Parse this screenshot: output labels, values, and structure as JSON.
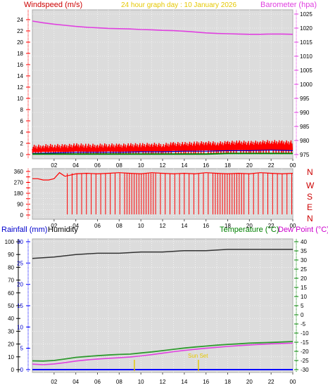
{
  "header": {
    "windspeed_label": "Windspeed (m/s)",
    "title": "24 hour graph day : 10 January 2026",
    "barometer_label": "Barometer (hpa)"
  },
  "compass": {
    "labels": [
      "N",
      "W",
      "S",
      "E",
      "N"
    ]
  },
  "bottom_header": {
    "rainfall_label": "Rainfall (mm)",
    "humidity_label": "Humidity",
    "temperature_label": "Temperature (°C)",
    "dewpoint_label": "Dew Point (°C)"
  },
  "annotations": {
    "sun": "Sun Set"
  },
  "colors": {
    "wind": "#ff0000",
    "gust": "#ff0000",
    "avg_wind": "#0000cc",
    "green_wind": "#008000",
    "barometer": "#e040e0",
    "direction": "#ff0000",
    "rainfall": "#0000ff",
    "humidity": "#333333",
    "temperature": "#2f9a2f",
    "dewpoint": "#e040e0",
    "title": "#e6c800",
    "panel_bg": "#dcdcdc"
  },
  "chart_data": [
    {
      "type": "line",
      "name": "wind_barometer",
      "x_ticks": [
        "02",
        "04",
        "06",
        "08",
        "10",
        "12",
        "14",
        "16",
        "18",
        "20",
        "22",
        "00"
      ],
      "ylim_left": [
        0,
        25
      ],
      "y_ticks_left": [
        0,
        2,
        4,
        6,
        8,
        10,
        12,
        14,
        16,
        18,
        20,
        22,
        24
      ],
      "ylim_right": [
        975,
        1025
      ],
      "y_ticks_right": [
        975,
        980,
        985,
        990,
        995,
        1000,
        1005,
        1010,
        1015,
        1020,
        1025
      ],
      "barometer": {
        "x": [
          0,
          1,
          2,
          3,
          4,
          5,
          6,
          7,
          8,
          9,
          10,
          11,
          12,
          13,
          14,
          15,
          16,
          17,
          18,
          19,
          20,
          21,
          22,
          23,
          24
        ],
        "values": [
          1022.5,
          1021.9,
          1021.4,
          1021.0,
          1020.6,
          1020.3,
          1020.1,
          1019.9,
          1019.8,
          1019.7,
          1019.5,
          1019.4,
          1019.2,
          1019.1,
          1018.9,
          1018.6,
          1018.3,
          1018.1,
          1018.0,
          1017.9,
          1017.8,
          1017.8,
          1017.9,
          1017.9,
          1017.8
        ]
      },
      "wind_max": {
        "x": [
          0,
          1,
          2,
          3,
          4,
          5,
          6,
          7,
          8,
          9,
          10,
          11,
          12,
          13,
          14,
          15,
          16,
          17,
          18,
          19,
          20,
          21,
          22,
          23,
          24
        ],
        "values": [
          1.0,
          1.1,
          1.2,
          1.1,
          1.3,
          1.2,
          1.2,
          1.3,
          1.2,
          1.3,
          1.3,
          1.4,
          1.3,
          1.5,
          1.5,
          1.6,
          1.7,
          1.6,
          1.7,
          1.8,
          1.7,
          1.8,
          1.9,
          1.8,
          1.8
        ]
      },
      "wind_avg": {
        "x": [
          0,
          2,
          4,
          6,
          8,
          10,
          12,
          14,
          16,
          18,
          20,
          22,
          24
        ],
        "values": [
          0.2,
          0.3,
          0.4,
          0.4,
          0.4,
          0.5,
          0.5,
          0.6,
          0.6,
          0.7,
          0.7,
          0.8,
          0.7
        ]
      },
      "wind_low": {
        "x": [
          0,
          2,
          4,
          6,
          8,
          10,
          12,
          14,
          16,
          18,
          20,
          22,
          24
        ],
        "values": [
          0.1,
          0.1,
          0.1,
          0.1,
          0.1,
          0.1,
          0.1,
          0.1,
          0.1,
          0.2,
          0.2,
          0.2,
          0.2
        ]
      }
    },
    {
      "type": "line",
      "name": "wind_direction",
      "x_ticks": [
        "02",
        "04",
        "06",
        "08",
        "10",
        "12",
        "14",
        "16",
        "18",
        "20",
        "22",
        "00"
      ],
      "ylim": [
        0,
        360
      ],
      "y_ticks": [
        0,
        45,
        90,
        135,
        180,
        225,
        270,
        315,
        360
      ],
      "x": [
        0,
        0.5,
        1,
        1.5,
        2,
        2.5,
        3,
        3.5,
        4,
        5,
        6,
        7,
        8,
        9,
        10,
        11,
        12,
        13,
        14,
        15,
        16,
        17,
        18,
        19,
        20,
        21,
        22,
        23,
        24
      ],
      "values": [
        300,
        300,
        290,
        290,
        300,
        350,
        320,
        330,
        340,
        345,
        340,
        345,
        350,
        345,
        340,
        350,
        345,
        340,
        345,
        340,
        350,
        345,
        340,
        345,
        340,
        350,
        345,
        340,
        345
      ]
    },
    {
      "type": "line",
      "name": "temperature_humidity",
      "x_ticks": [
        "02",
        "04",
        "06",
        "08",
        "10",
        "12",
        "14",
        "16",
        "18",
        "20",
        "22",
        "00"
      ],
      "ylim_left": [
        0,
        100
      ],
      "y_ticks_left": [
        0,
        10,
        20,
        30,
        40,
        50,
        60,
        70,
        80,
        90,
        100
      ],
      "ylim_rain": [
        0,
        30
      ],
      "y_ticks_rain": [
        0,
        5,
        10,
        15,
        20,
        25,
        30
      ],
      "ylim_temp": [
        -30,
        40
      ],
      "y_ticks_temp": [
        -30,
        -25,
        -20,
        -15,
        -10,
        -5,
        0,
        5,
        10,
        15,
        20,
        25,
        30,
        35,
        40
      ],
      "humidity": {
        "x": [
          0,
          2,
          4,
          6,
          8,
          10,
          12,
          14,
          16,
          18,
          20,
          22,
          24
        ],
        "values": [
          87,
          88,
          90,
          91,
          91,
          92,
          92,
          93,
          93,
          94,
          94,
          94,
          94
        ]
      },
      "temperature": {
        "x": [
          0,
          1,
          2,
          3,
          4,
          5,
          6,
          7,
          8,
          9,
          10,
          11,
          12,
          13,
          14,
          15,
          16,
          17,
          18,
          19,
          20,
          21,
          22,
          23,
          24
        ],
        "values": [
          -25.2,
          -25.3,
          -25.0,
          -24.2,
          -23.3,
          -22.8,
          -22.4,
          -22.0,
          -21.7,
          -21.5,
          -20.9,
          -20.3,
          -19.6,
          -18.9,
          -18.2,
          -17.6,
          -17.1,
          -16.6,
          -16.2,
          -15.9,
          -15.5,
          -15.3,
          -15.1,
          -14.9,
          -14.6
        ]
      },
      "dewpoint": {
        "x": [
          0,
          1,
          2,
          3,
          4,
          5,
          6,
          7,
          8,
          9,
          10,
          11,
          12,
          13,
          14,
          15,
          16,
          17,
          18,
          19,
          20,
          21,
          22,
          23,
          24
        ],
        "values": [
          -27.0,
          -27.3,
          -26.9,
          -26.2,
          -25.3,
          -24.7,
          -24.2,
          -23.8,
          -23.5,
          -23.1,
          -22.5,
          -21.8,
          -21.0,
          -20.2,
          -19.5,
          -18.9,
          -18.3,
          -17.8,
          -17.3,
          -16.9,
          -16.5,
          -16.2,
          -15.9,
          -15.7,
          -15.5
        ]
      },
      "rainfall": {
        "x": [
          0,
          24
        ],
        "values": [
          0,
          0
        ]
      },
      "sun_marks_x": [
        9.4,
        15.3
      ]
    }
  ]
}
